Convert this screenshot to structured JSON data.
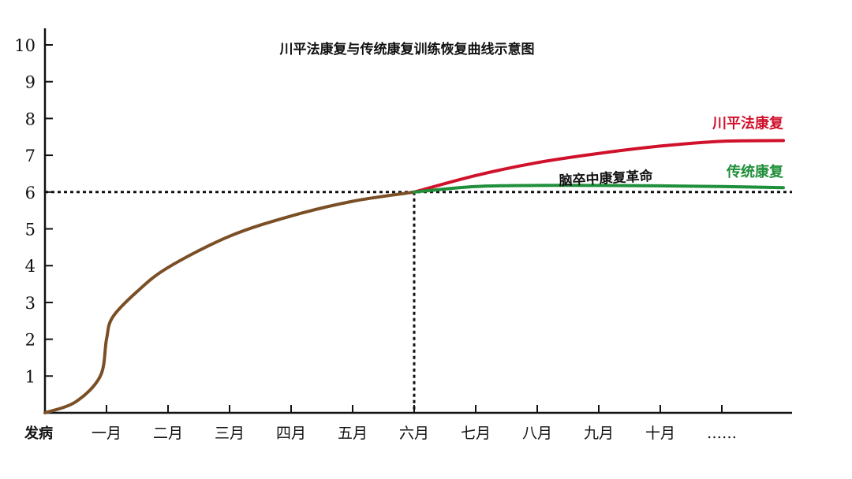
{
  "chart_data": {
    "type": "line",
    "title": "川平法康复与传统康复训练恢复曲线示意图",
    "annotation": "脑卒中康复革命",
    "xlabel": "",
    "ylabel": "",
    "x_ticks": [
      "发病",
      "一月",
      "二月",
      "三月",
      "四月",
      "五月",
      "六月",
      "七月",
      "八月",
      "九月",
      "十月",
      "……"
    ],
    "y_ticks": [
      "1",
      "2",
      "3",
      "4",
      "5",
      "6",
      "7",
      "8",
      "9",
      "10"
    ],
    "xlim": [
      0,
      12
    ],
    "ylim": [
      0,
      10.2
    ],
    "reference_lines": [
      {
        "type": "horizontal",
        "y": 6,
        "style": "dotted"
      },
      {
        "type": "vertical",
        "x": 6,
        "style": "dotted"
      }
    ],
    "series": [
      {
        "name": "",
        "color": "#7a4f26",
        "points": [
          [
            0,
            0
          ],
          [
            0.5,
            0.3
          ],
          [
            0.9,
            1.0
          ],
          [
            1.0,
            2.0
          ],
          [
            1.1,
            2.6
          ],
          [
            1.5,
            3.3
          ],
          [
            2,
            3.95
          ],
          [
            3,
            4.8
          ],
          [
            4,
            5.35
          ],
          [
            5,
            5.75
          ],
          [
            6,
            6.0
          ]
        ]
      },
      {
        "name": "川平法康复",
        "color": "#d0112b",
        "points": [
          [
            6,
            6.0
          ],
          [
            7,
            6.45
          ],
          [
            8,
            6.8
          ],
          [
            9,
            7.05
          ],
          [
            10,
            7.25
          ],
          [
            11,
            7.38
          ],
          [
            12,
            7.4
          ]
        ]
      },
      {
        "name": "传统康复",
        "color": "#1f8f3a",
        "points": [
          [
            6,
            6.0
          ],
          [
            7,
            6.15
          ],
          [
            8,
            6.18
          ],
          [
            9,
            6.18
          ],
          [
            10,
            6.17
          ],
          [
            11,
            6.15
          ],
          [
            12,
            6.12
          ]
        ]
      }
    ]
  }
}
